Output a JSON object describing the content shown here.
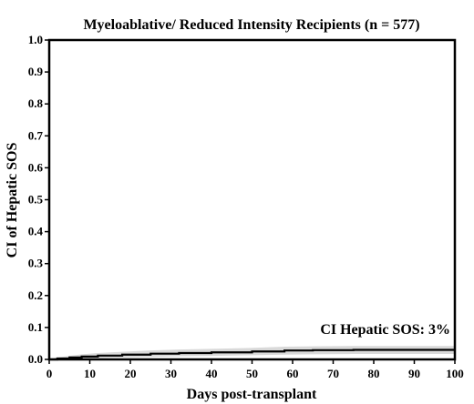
{
  "chart_data": {
    "type": "line",
    "title": "Myeloablative/ Reduced Intensity Recipients (n = 577)",
    "xlabel": "Days post-transplant",
    "ylabel": "CI of Hepatic SOS",
    "xlim": [
      0,
      100
    ],
    "ylim": [
      0,
      1.0
    ],
    "x_ticks": [
      "0",
      "10",
      "20",
      "30",
      "40",
      "50",
      "60",
      "70",
      "80",
      "90",
      "100"
    ],
    "y_ticks": [
      "0.0",
      "0.1",
      "0.2",
      "0.3",
      "0.4",
      "0.5",
      "0.6",
      "0.7",
      "0.8",
      "0.9",
      "1.0"
    ],
    "grid": false,
    "annotation": "CI Hepatic SOS: 3%",
    "series": [
      {
        "line_color": "#000000",
        "x": [
          0,
          2,
          5,
          8,
          12,
          18,
          25,
          32,
          40,
          50,
          58,
          65,
          75,
          85,
          100
        ],
        "y": [
          0.0,
          0.003,
          0.006,
          0.009,
          0.012,
          0.015,
          0.018,
          0.02,
          0.022,
          0.025,
          0.028,
          0.029,
          0.03,
          0.03,
          0.03
        ],
        "ci_lower": [
          0.0,
          0.0,
          0.001,
          0.002,
          0.004,
          0.006,
          0.008,
          0.01,
          0.011,
          0.013,
          0.015,
          0.016,
          0.017,
          0.017,
          0.017
        ],
        "ci_upper": [
          0.0,
          0.006,
          0.011,
          0.016,
          0.02,
          0.024,
          0.028,
          0.031,
          0.033,
          0.036,
          0.04,
          0.041,
          0.042,
          0.042,
          0.042
        ],
        "ci_color": "#d9d9d9"
      }
    ]
  }
}
